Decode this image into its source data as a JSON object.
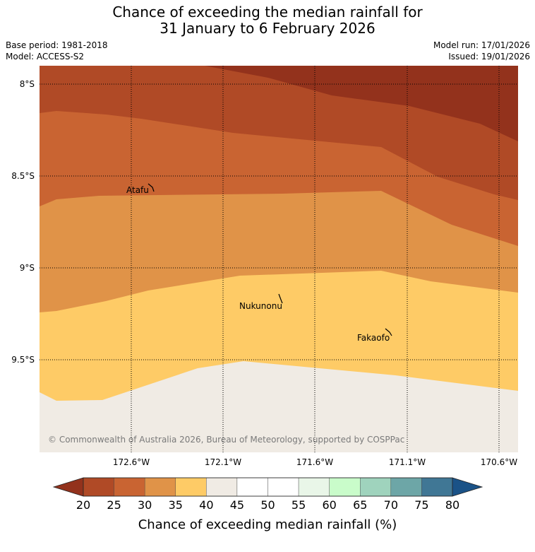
{
  "title_line1": "Chance of exceeding the median rainfall for",
  "title_line2": "31 January to 6 February 2026",
  "base_period": "Base period: 1981-2018",
  "model": "Model: ACCESS-S2",
  "model_run": "Model run: 17/01/2026",
  "issued": "Issued: 19/01/2026",
  "map": {
    "lat_labels": [
      "8°S",
      "8.5°S",
      "9°S",
      "9.5°S"
    ],
    "lon_labels": [
      "172.6°W",
      "172.1°W",
      "171.6°W",
      "171.1°W",
      "170.6°W"
    ],
    "places": [
      {
        "name": "Atafu"
      },
      {
        "name": "Nukunonu"
      },
      {
        "name": "Fakaofo"
      }
    ],
    "copyright": "© Commonwealth of Australia 2026, Bureau of Meteorology, supported by COSPPac",
    "band_colors": [
      "#93321c",
      "#b04a26",
      "#c96432",
      "#e09348",
      "#fecb66",
      "#f0ebe4"
    ]
  },
  "colorbar": {
    "ticks": [
      "20",
      "25",
      "30",
      "35",
      "40",
      "45",
      "50",
      "55",
      "60",
      "65",
      "70",
      "75",
      "80"
    ],
    "colors": [
      "#b04a26",
      "#c96432",
      "#e09348",
      "#fecb66",
      "#f0ebe4",
      "#ffffff",
      "#ffffff",
      "#e9f6e8",
      "#c9fcca",
      "#9fd3bd",
      "#6da6a7",
      "#407795"
    ],
    "under_color": "#93321c",
    "over_color": "#1a5287",
    "label": "Chance of exceeding median rainfall (%)"
  }
}
